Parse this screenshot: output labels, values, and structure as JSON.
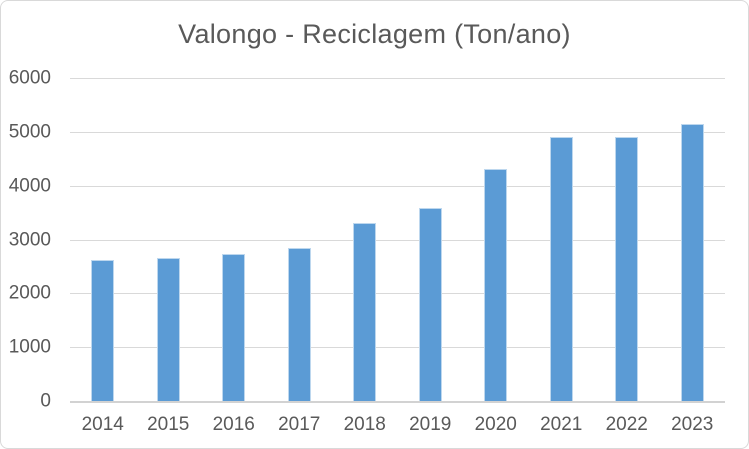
{
  "title": "Valongo - Reciclagem (Ton/ano)",
  "colors": {
    "bar_fill": "#5B9BD5",
    "bar_border": "#BDD7EE",
    "gridline": "#D9D9D9",
    "axis_line": "#D2D2D2",
    "text": "#595959",
    "chart_border": "#D9D9D9",
    "background": "#FFFFFF"
  },
  "chart_data": {
    "type": "bar",
    "title": "Valongo - Reciclagem (Ton/ano)",
    "categories": [
      "2014",
      "2015",
      "2016",
      "2017",
      "2018",
      "2019",
      "2020",
      "2021",
      "2022",
      "2023"
    ],
    "values": [
      2620,
      2650,
      2730,
      2850,
      3310,
      3590,
      4310,
      4900,
      4900,
      5140
    ],
    "xlabel": "",
    "ylabel": "",
    "ylim": [
      0,
      6000
    ],
    "yticks": [
      0,
      1000,
      2000,
      3000,
      4000,
      5000,
      6000
    ],
    "grid": true,
    "legend": false,
    "series_name": "Reciclagem (Ton/ano)"
  }
}
